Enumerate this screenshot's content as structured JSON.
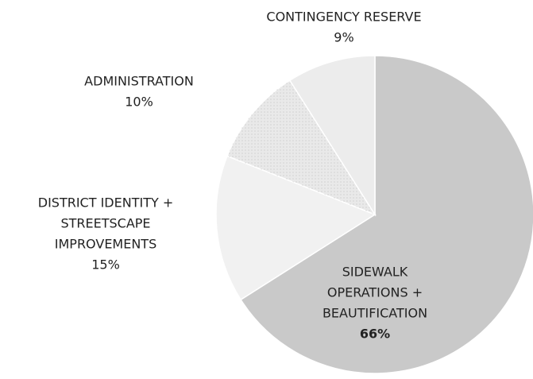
{
  "chart_data": {
    "type": "pie",
    "categories": [
      [
        "SIDEWALK",
        "OPERATIONS +",
        "BEAUTIFICATION"
      ],
      [
        "DISTRICT IDENTITY +",
        "STREETSCAPE",
        "IMPROVEMENTS"
      ],
      [
        "ADMINISTRATION"
      ],
      [
        "CONTINGENCY RESERVE"
      ]
    ],
    "values": [
      66,
      15,
      10,
      9
    ],
    "value_labels": [
      "66%",
      "15%",
      "10%",
      "9%"
    ],
    "colors": [
      "#c9c9c9",
      "#f1f1f1",
      "#e9e9e9",
      "#ececec"
    ]
  }
}
